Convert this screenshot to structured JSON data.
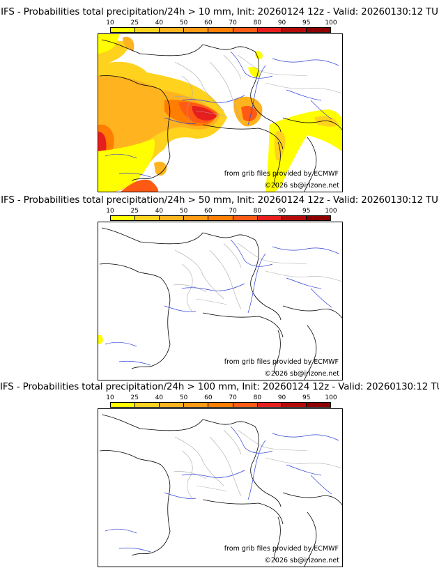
{
  "colorbar": {
    "levels": [
      "10",
      "25",
      "40",
      "50",
      "60",
      "70",
      "80",
      "90",
      "95",
      "100"
    ],
    "colors": [
      "#ffff00",
      "#ffd21e",
      "#ffb31e",
      "#ff9a14",
      "#ff7d00",
      "#ff5a14",
      "#e61e1e",
      "#b40a0a",
      "#8c0000",
      "#5a0000"
    ]
  },
  "panels": [
    {
      "title": "IFS - Probabilities total precipitation/24h > 10 mm, Init: 20260124 12z - Valid: 20260130:12 TU",
      "source_credit": "from grib files provided by ECMWF",
      "copyright": "©2026 sb@irizone.net"
    },
    {
      "title": "IFS - Probabilities total precipitation/24h > 50 mm, Init: 20260124 12z - Valid: 20260130:12 TU",
      "source_credit": "from grib files provided by ECMWF",
      "copyright": "©2026 sb@irizone.net"
    },
    {
      "title": "IFS - Probabilities total precipitation/24h > 100 mm, Init: 20260124 12z - Valid: 20260130:12 TU",
      "source_credit": "from grib files provided by ECMWF",
      "copyright": "©2026 sb@irizone.net"
    }
  ]
}
